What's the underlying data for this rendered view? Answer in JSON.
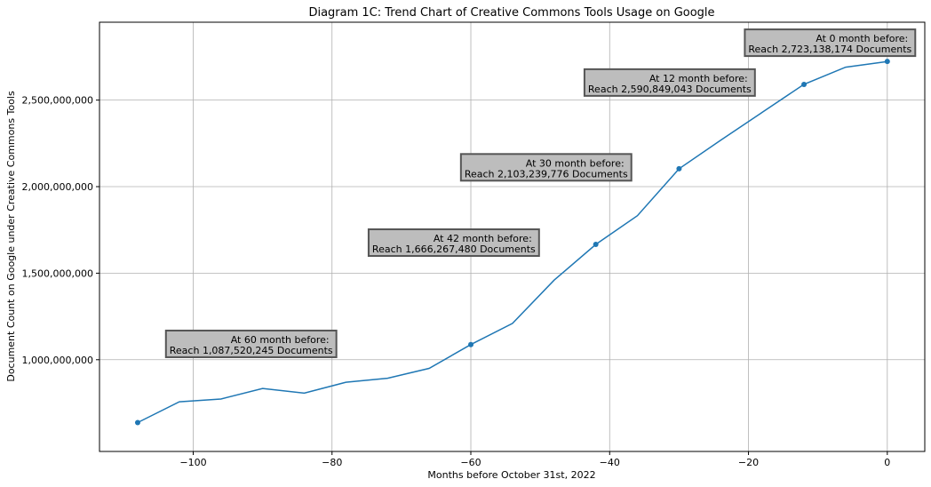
{
  "chart_data": {
    "type": "line",
    "title": "Diagram 1C: Trend Chart of Creative Commons Tools Usage on Google",
    "xlabel": "Months before October 31st, 2022",
    "ylabel": "Document Count on Google under Creative Commons Tools",
    "xlim": [
      -113.5,
      5.4
    ],
    "ylim": [
      470000000,
      2950000000
    ],
    "x_ticks": [
      -100,
      -80,
      -60,
      -40,
      -20,
      0
    ],
    "x_tick_labels": [
      "−100",
      "−80",
      "−60",
      "−40",
      "−20",
      "0"
    ],
    "y_ticks": [
      1000000000,
      1500000000,
      2000000000,
      2500000000
    ],
    "y_tick_labels": [
      "1,000,000,000",
      "1,500,000,000",
      "2,000,000,000",
      "2,500,000,000"
    ],
    "grid": true,
    "color": "#1f77b4",
    "series": [
      {
        "x": [
          -108,
          -102,
          -96,
          -90,
          -84,
          -78,
          -72,
          -66,
          -60,
          -54,
          -48,
          -42,
          -36,
          -30,
          -24,
          -18,
          -12,
          -6,
          0
        ],
        "values": [
          637000000,
          757000000,
          773000000,
          834000000,
          807000000,
          870000000,
          893000000,
          950000000,
          1087520245,
          1210000000,
          1460000000,
          1666267480,
          1832000000,
          2103239776,
          2268000000,
          2430000000,
          2590849043,
          2690000000,
          2723138174
        ]
      }
    ],
    "markers": [
      {
        "x": -108,
        "y": 637000000
      },
      {
        "x": -60,
        "y": 1087520245
      },
      {
        "x": -42,
        "y": 1666267480
      },
      {
        "x": -30,
        "y": 2103239776
      },
      {
        "x": -12,
        "y": 2590849043
      },
      {
        "x": 0,
        "y": 2723138174
      }
    ],
    "annotations": [
      {
        "line1": "At 60 month before:",
        "line2": "Reach 1,087,520,245 Documents"
      },
      {
        "line1": "At 42 month before:",
        "line2": "Reach 1,666,267,480 Documents"
      },
      {
        "line1": "At 30 month before:",
        "line2": "Reach 2,103,239,776 Documents"
      },
      {
        "line1": "At 12 month before:",
        "line2": "Reach 2,590,849,043 Documents"
      },
      {
        "line1": "At 0 month before:",
        "line2": "Reach 2,723,138,174 Documents"
      }
    ]
  }
}
